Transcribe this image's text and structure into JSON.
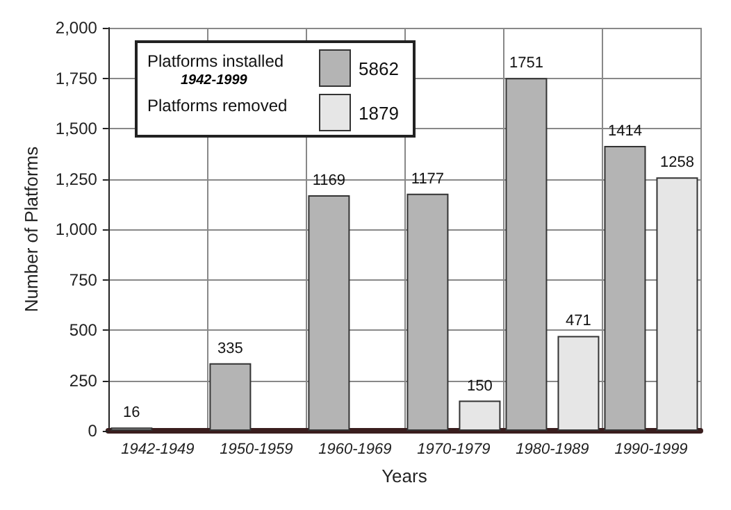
{
  "chart_data": {
    "type": "bar",
    "xlabel": "Years",
    "ylabel": "Number of Platforms",
    "categories": [
      "1942-1949",
      "1950-1959",
      "1960-1969",
      "1970-1979",
      "1980-1989",
      "1990-1999"
    ],
    "series": [
      {
        "name": "Platforms installed",
        "color": "#b4b4b4",
        "values": [
          16,
          335,
          1169,
          1177,
          1751,
          1414
        ]
      },
      {
        "name": "Platforms removed",
        "color": "#e6e6e6",
        "values": [
          null,
          null,
          null,
          150,
          471,
          1258
        ]
      }
    ],
    "ylim": [
      0,
      2000
    ],
    "yticks": [
      0,
      250,
      500,
      {
        "value": 750,
        "label": "750"
      },
      {
        "value": 1000,
        "label": "1,000"
      },
      {
        "value": 1250,
        "label": "1,250"
      },
      {
        "value": 1500,
        "label": "1,500"
      },
      {
        "value": 1750,
        "label": "1,750"
      },
      {
        "value": 2000,
        "label": "2,000"
      }
    ],
    "grid": true,
    "data_labels": true,
    "legend": "top left",
    "annotations": [
      "1942-1999",
      "5862",
      "1879"
    ]
  }
}
